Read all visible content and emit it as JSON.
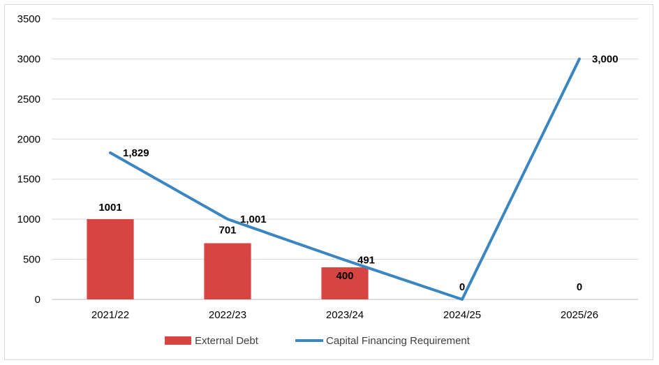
{
  "chart_data": {
    "type": "bar",
    "categories": [
      "2021/22",
      "2022/23",
      "2023/24",
      "2024/25",
      "2025/26"
    ],
    "series": [
      {
        "name": "External Debt",
        "kind": "bar",
        "color": "#d64541",
        "values": [
          1001,
          701,
          400,
          0,
          0
        ],
        "data_labels": [
          "1001",
          "701",
          "400",
          "",
          "0"
        ]
      },
      {
        "name": "Capital Financing Requirement",
        "kind": "line",
        "color": "#3a86c0",
        "values": [
          1829,
          1001,
          491,
          0,
          3000
        ],
        "data_labels": [
          "1,829",
          "1,001",
          "491",
          "0",
          "3,000"
        ]
      }
    ],
    "ylim": [
      0,
      3500
    ],
    "yticks": [
      "0",
      "500",
      "1000",
      "1500",
      "2000",
      "2500",
      "3000",
      "3500"
    ],
    "grid": true,
    "legend_position": "bottom",
    "title": "",
    "xlabel": "",
    "ylabel": ""
  }
}
